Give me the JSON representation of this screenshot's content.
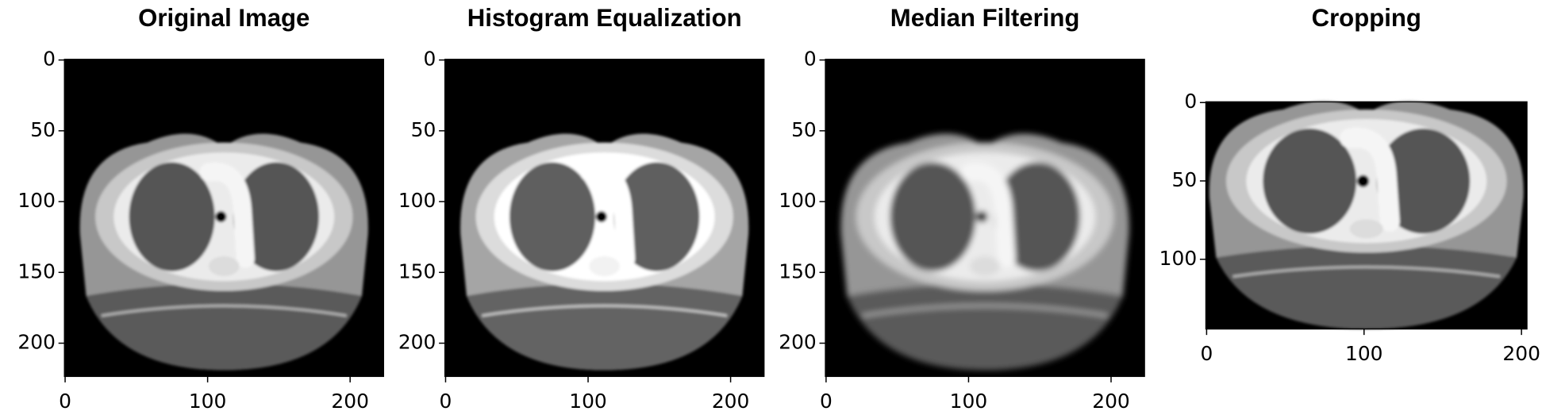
{
  "chart_data": [
    {
      "type": "image",
      "title": "Original Image",
      "xlim": [
        -0.5,
        223.5
      ],
      "ylim": [
        223.5,
        -0.5
      ],
      "xticks": [
        0,
        100,
        200
      ],
      "yticks": [
        0,
        50,
        100,
        150,
        200
      ]
    },
    {
      "type": "image",
      "title": "Histogram Equalization",
      "xlim": [
        -0.5,
        223.5
      ],
      "ylim": [
        223.5,
        -0.5
      ],
      "xticks": [
        0,
        100,
        200
      ],
      "yticks": [
        0,
        50,
        100,
        150,
        200
      ]
    },
    {
      "type": "image",
      "title": "Median Filtering",
      "xlim": [
        -0.5,
        223.5
      ],
      "ylim": [
        223.5,
        -0.5
      ],
      "xticks": [
        0,
        100,
        200
      ],
      "yticks": [
        0,
        50,
        100,
        150,
        200
      ]
    },
    {
      "type": "image",
      "title": "Cropping",
      "xlim": [
        -0.5,
        203.5
      ],
      "ylim": [
        144.5,
        -0.5
      ],
      "xticks": [
        0,
        100,
        200
      ],
      "yticks": [
        0,
        50,
        100
      ]
    }
  ]
}
